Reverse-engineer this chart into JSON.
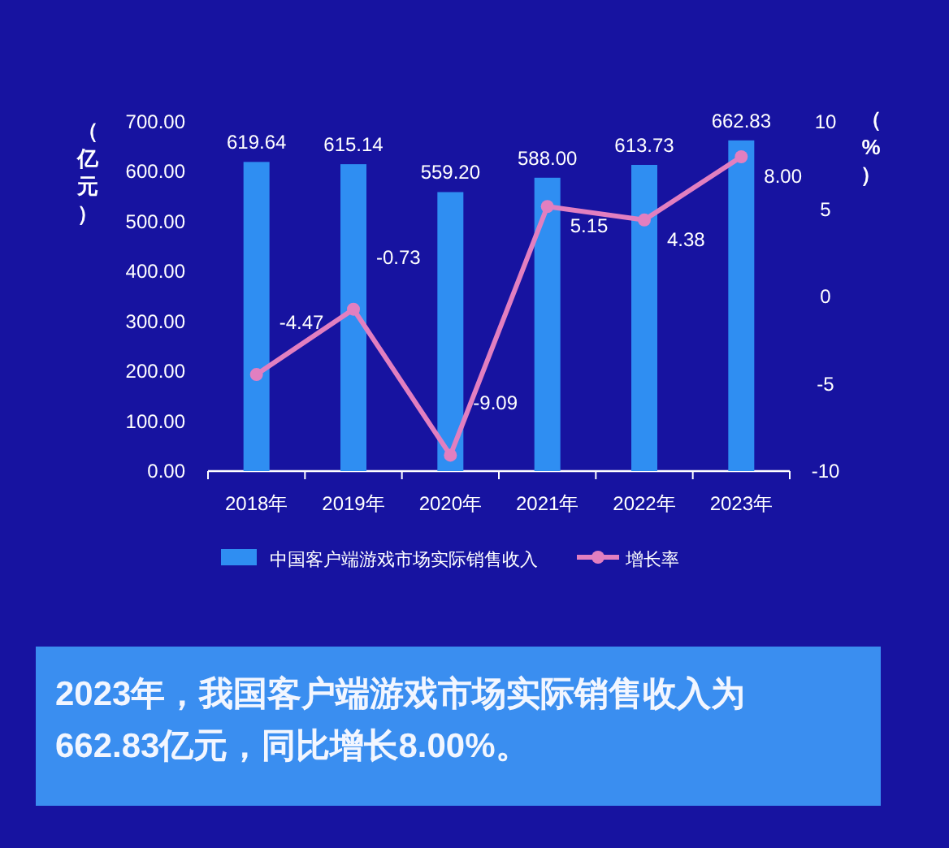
{
  "chart_data": {
    "type": "bar",
    "categories": [
      "2018年",
      "2019年",
      "2020年",
      "2021年",
      "2022年",
      "2023年"
    ],
    "series": [
      {
        "name": "中国客户端游戏市场实际销售收入",
        "color": "#2f8ef2",
        "values": [
          619.64,
          615.14,
          559.2,
          588.0,
          613.73,
          662.83
        ],
        "value_labels": [
          "619.64",
          "615.14",
          "559.20",
          "588.00",
          "613.73",
          "662.83"
        ]
      },
      {
        "name": "增长率",
        "type": "line",
        "axis": "y2",
        "color": "#e27fc0",
        "values": [
          -4.47,
          -0.73,
          -9.09,
          5.15,
          4.38,
          8.0
        ],
        "value_labels": [
          "-4.47",
          "-0.73",
          "-9.09",
          "5.15",
          "4.38",
          "8.00"
        ]
      }
    ],
    "ylabel": "（亿元）",
    "y2label": "（%）",
    "ylim": [
      0,
      700
    ],
    "yticks": [
      {
        "value": 0,
        "label": "0.00"
      },
      {
        "value": 100,
        "label": "100.00"
      },
      {
        "value": 200,
        "label": "200.00"
      },
      {
        "value": 300,
        "label": "300.00"
      },
      {
        "value": 400,
        "label": "400.00"
      },
      {
        "value": 500,
        "label": "500.00"
      },
      {
        "value": 600,
        "label": "600.00"
      },
      {
        "value": 700,
        "label": "700.00"
      }
    ],
    "y2lim": [
      -10,
      10
    ],
    "y2ticks": [
      -10,
      -5,
      0,
      5,
      10
    ],
    "legend": "bottom",
    "marker": "circle",
    "annotations": [
      "2023年，我国客户端游戏市场实际销售收入为662.83亿元，同比增长8.00%。"
    ]
  }
}
